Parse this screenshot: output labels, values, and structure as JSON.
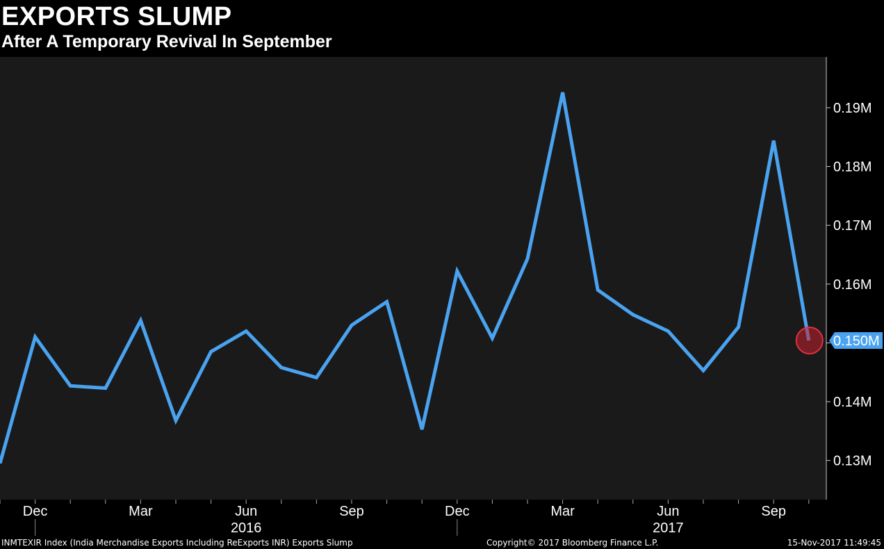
{
  "header": {
    "title": "EXPORTS SLUMP",
    "subtitle": "After A Temporary Revival In September"
  },
  "footer": {
    "source": "INMTEXIR Index (India Merchandise Exports Including ReExports INR) Exports Slump",
    "copyright": "Copyright© 2017 Bloomberg Finance L.P.",
    "timestamp": "15-Nov-2017 11:49:45"
  },
  "chart_data": {
    "type": "line",
    "title": "EXPORTS SLUMP",
    "subtitle": "After A Temporary Revival In September",
    "x": [
      "2015-11",
      "2015-12",
      "2016-01",
      "2016-02",
      "2016-03",
      "2016-04",
      "2016-05",
      "2016-06",
      "2016-07",
      "2016-08",
      "2016-09",
      "2016-10",
      "2016-11",
      "2016-12",
      "2017-01",
      "2017-02",
      "2017-03",
      "2017-04",
      "2017-05",
      "2017-06",
      "2017-07",
      "2017-08",
      "2017-09",
      "2017-10"
    ],
    "series": [
      {
        "values": [
          0.1295,
          0.151,
          0.1427,
          0.1423,
          0.1538,
          0.1368,
          0.1485,
          0.152,
          0.1458,
          0.1441,
          0.153,
          0.157,
          0.1353,
          0.1622,
          0.1508,
          0.1643,
          0.1926,
          0.159,
          0.1548,
          0.152,
          0.1453,
          0.1527,
          0.1844,
          0.1504
        ]
      }
    ],
    "ylim": [
      0.1235,
      0.1985
    ],
    "y_ticks": [
      0.13,
      0.14,
      0.15,
      0.16,
      0.17,
      0.18,
      0.19
    ],
    "y_tick_labels": [
      "0.13M",
      "0.14M",
      "",
      "0.16M",
      "0.17M",
      "0.18M",
      "0.19M"
    ],
    "x_tick_labels": [
      {
        "x": "2015-12",
        "label": "Dec"
      },
      {
        "x": "2016-03",
        "label": "Mar"
      },
      {
        "x": "2016-06",
        "label": "Jun"
      },
      {
        "x": "2016-09",
        "label": "Sep"
      },
      {
        "x": "2016-12",
        "label": "Dec"
      },
      {
        "x": "2017-03",
        "label": "Mar"
      },
      {
        "x": "2017-06",
        "label": "Jun"
      },
      {
        "x": "2017-09",
        "label": "Sep"
      }
    ],
    "year_labels": [
      {
        "x": "2016-06",
        "label": "2016"
      },
      {
        "x": "2017-06",
        "label": "2017"
      }
    ],
    "last_value_label": "0.150M",
    "grid": false,
    "colors": {
      "line": "#4aa3f0",
      "plot_background": "#1a1a1a",
      "page_background": "#000000",
      "highlight": "#c8202f"
    }
  }
}
